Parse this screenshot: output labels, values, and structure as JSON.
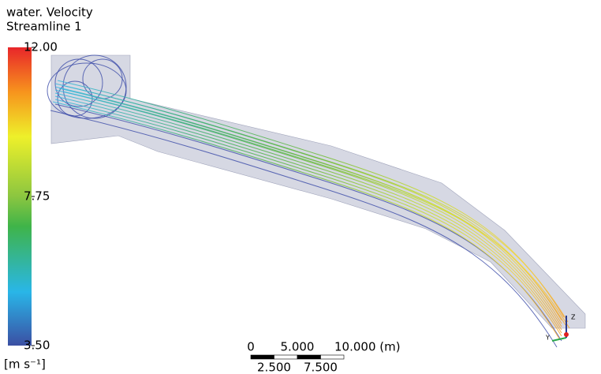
{
  "legend": {
    "title": "water. Velocity",
    "subtitle": "Streamline 1",
    "range": [
      3.5,
      12
    ],
    "ticks": [
      {
        "value": 12,
        "label": "12.00"
      },
      {
        "value": 7.75,
        "label": "7.75"
      },
      {
        "value": 3.5,
        "label": "3.50"
      }
    ],
    "unit": "[m s⁻¹]"
  },
  "scale_bar": {
    "range": [
      0,
      10
    ],
    "ticks": [
      {
        "value": 0,
        "label": "0"
      },
      {
        "value": 2.5,
        "label": "2.500"
      },
      {
        "value": 5,
        "label": "5.000"
      },
      {
        "value": 7.5,
        "label": "7.500"
      },
      {
        "value": 10,
        "label": "10.000 (m)"
      }
    ]
  },
  "triad": {
    "labels": [
      "Y",
      "Z"
    ]
  }
}
